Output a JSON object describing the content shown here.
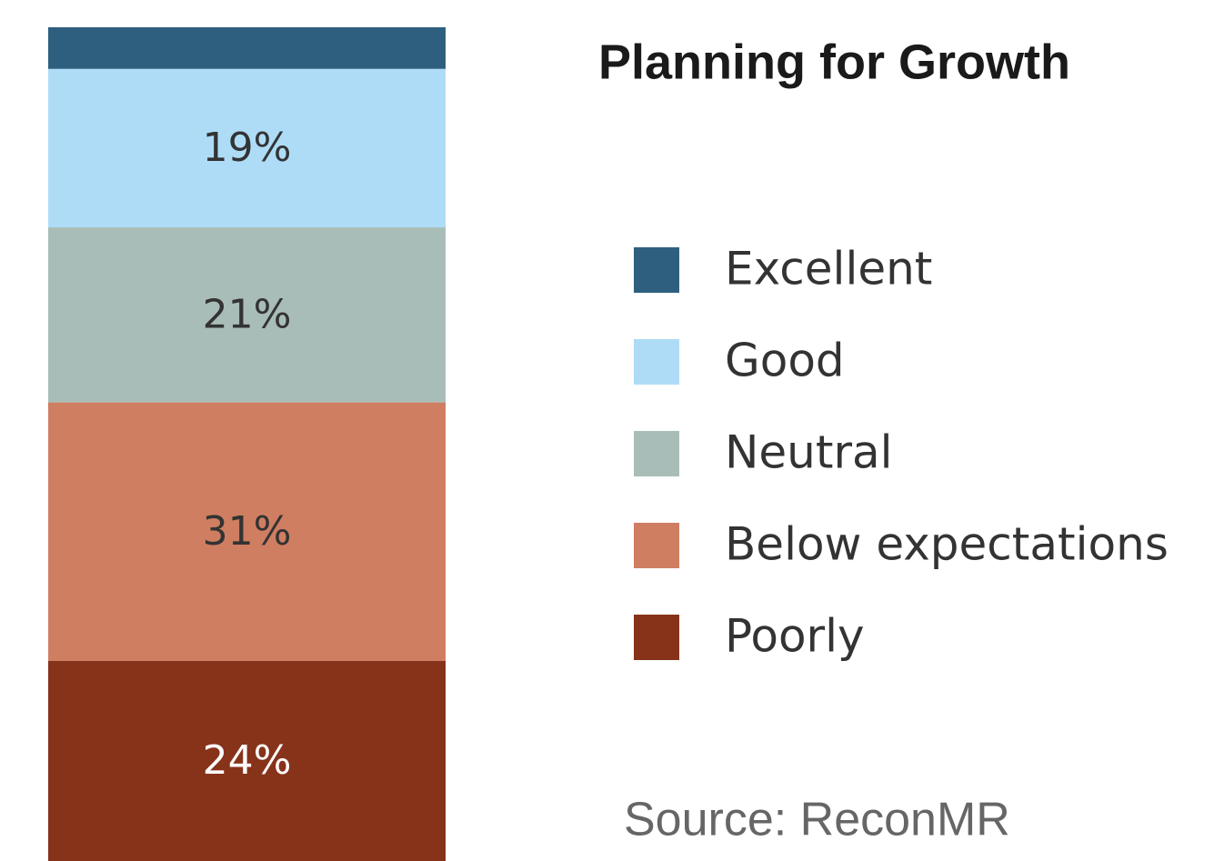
{
  "chart_data": {
    "type": "stacked_bar",
    "title": "Planning for Growth",
    "source": "Source: ReconMR",
    "ylim": [
      0,
      100
    ],
    "series": [
      {
        "name": "Excellent",
        "color": "#2e5f7e",
        "values": [
          5
        ],
        "value_labels": [
          null
        ]
      },
      {
        "name": "Good",
        "color": "#aedcf7",
        "values": [
          19
        ],
        "value_labels": [
          "19%"
        ]
      },
      {
        "name": "Neutral",
        "color": "#a9bdb8",
        "values": [
          21
        ],
        "value_labels": [
          "21%"
        ]
      },
      {
        "name": "Below expectations",
        "color": "#cf7e61",
        "values": [
          31
        ],
        "value_labels": [
          "31%"
        ]
      },
      {
        "name": "Poorly",
        "color": "#86331a",
        "values": [
          24
        ],
        "value_labels": [
          "24%"
        ]
      }
    ]
  }
}
